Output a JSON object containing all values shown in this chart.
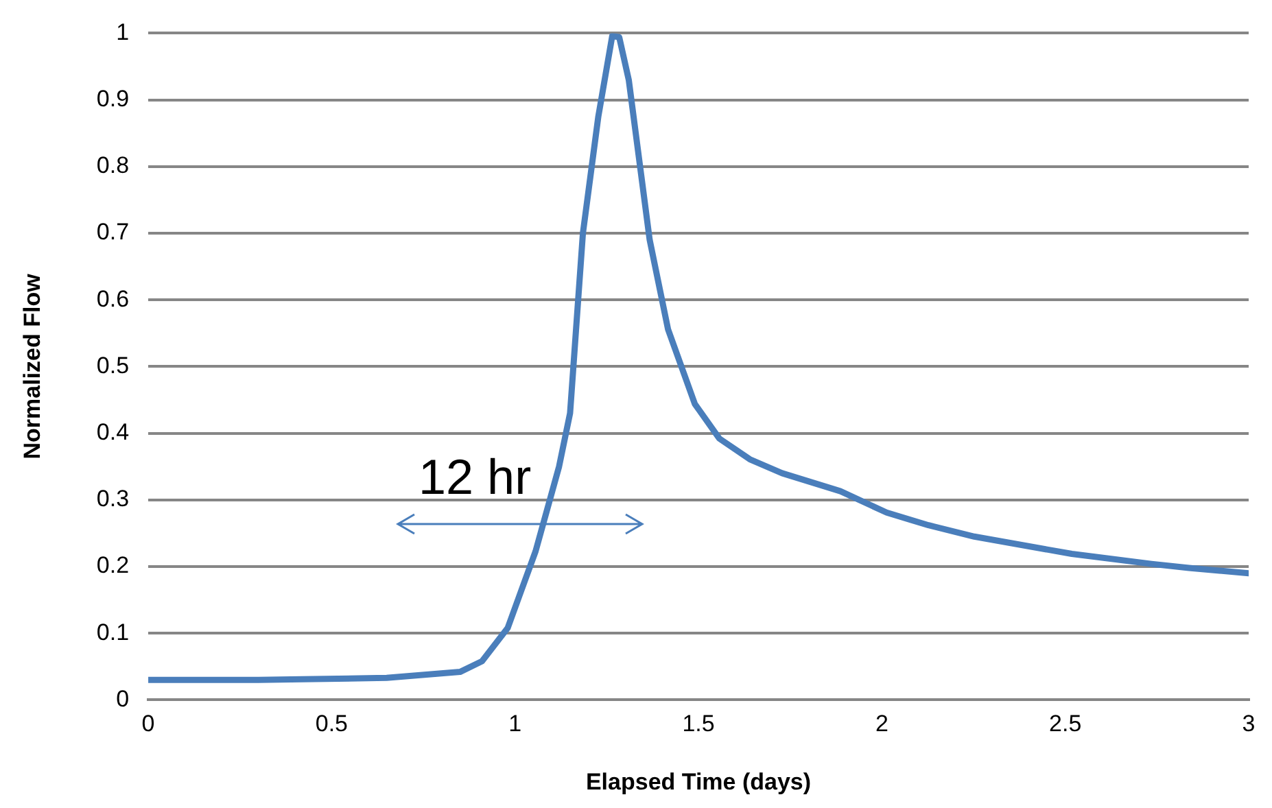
{
  "chart_data": {
    "type": "line",
    "xlabel": "Elapsed Time (days)",
    "ylabel": "Normalized Flow",
    "xlim": [
      0,
      3
    ],
    "xticks": [
      0,
      0.5,
      1,
      1.5,
      2,
      2.5,
      3
    ],
    "ylim": [
      0,
      1
    ],
    "yticks": [
      0,
      0.1,
      0.2,
      0.3,
      0.4,
      0.5,
      0.6,
      0.7,
      0.8,
      0.9,
      1
    ],
    "grid": "y",
    "legend": false,
    "marker": "none",
    "line_style": "solid",
    "annotations": [
      "12 hr"
    ],
    "series": [
      {
        "color": "#4a7ebb",
        "x": [
          0,
          0.3,
          0.42,
          0.65,
          0.85,
          0.91,
          0.98,
          1.056,
          1.12,
          1.15,
          1.185,
          1.227,
          1.265,
          1.284,
          1.31,
          1.367,
          1.417,
          1.49,
          1.557,
          1.64,
          1.728,
          1.887,
          2.013,
          2.127,
          2.252,
          2.518,
          2.735,
          2.837,
          3
        ],
        "values": [
          0.03,
          0.03,
          0.031,
          0.033,
          0.042,
          0.058,
          0.108,
          0.223,
          0.35,
          0.43,
          0.7,
          0.875,
          0.996,
          0.994,
          0.93,
          0.69,
          0.556,
          0.444,
          0.392,
          0.361,
          0.34,
          0.313,
          0.281,
          0.262,
          0.245,
          0.219,
          0.204,
          0.198,
          0.19
        ]
      }
    ]
  }
}
